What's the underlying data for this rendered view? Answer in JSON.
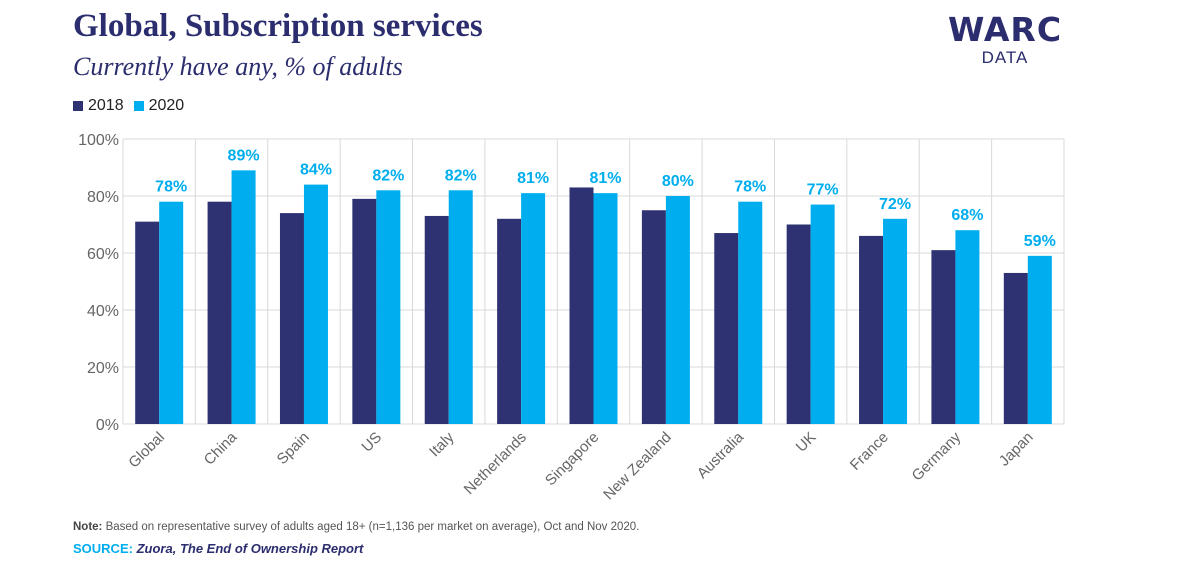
{
  "header": {
    "title": "Global, Subscription services",
    "subtitle": "Currently have any, % of adults"
  },
  "logo": {
    "main": "WARC",
    "sub": "DATA"
  },
  "colors": {
    "series_2018": "#2e3272",
    "series_2020": "#00aeef",
    "title": "#2b2d6e",
    "grid": "#d9d9d9"
  },
  "footer": {
    "note_label": "Note:",
    "note_text": "Based on representative survey of adults aged 18+ (n=1,136 per market on average), Oct and Nov 2020.",
    "source_label": "SOURCE:",
    "source_org": "Zuora,",
    "source_report": "The End of Ownership Report"
  },
  "chart_data": {
    "type": "bar",
    "title": "Global, Subscription services",
    "subtitle": "Currently have any, % of adults",
    "categories": [
      "Global",
      "China",
      "Spain",
      "US",
      "Italy",
      "Netherlands",
      "Singapore",
      "New Zealand",
      "Australia",
      "UK",
      "France",
      "Germany",
      "Japan"
    ],
    "series": [
      {
        "name": "2018",
        "values": [
          71,
          78,
          74,
          79,
          73,
          72,
          83,
          75,
          67,
          70,
          66,
          61,
          53
        ]
      },
      {
        "name": "2020",
        "values": [
          78,
          89,
          84,
          82,
          82,
          81,
          81,
          80,
          78,
          77,
          72,
          68,
          59
        ]
      }
    ],
    "data_labels_series": "2020",
    "data_labels": [
      "78%",
      "89%",
      "84%",
      "82%",
      "82%",
      "81%",
      "81%",
      "80%",
      "78%",
      "77%",
      "72%",
      "68%",
      "59%"
    ],
    "ylim": [
      0,
      100
    ],
    "yticks": [
      "0%",
      "20%",
      "40%",
      "60%",
      "80%",
      "100%"
    ],
    "ytick_values": [
      0,
      20,
      40,
      60,
      80,
      100
    ],
    "grid": true,
    "legend_position": "top-left",
    "xlabel": "",
    "ylabel": ""
  }
}
